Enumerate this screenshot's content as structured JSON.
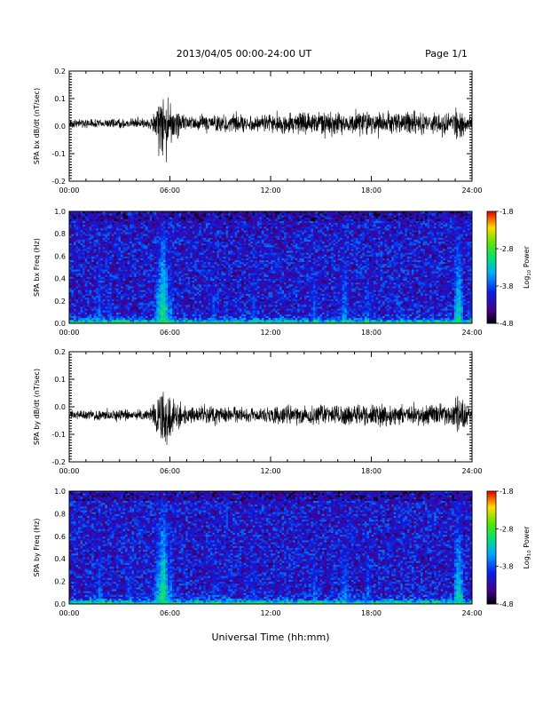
{
  "header": {
    "title": "2013/04/05  00:00-24:00 UT",
    "page": "Page 1/1"
  },
  "footer": {
    "xlabel": "Universal Time (hh:mm)"
  },
  "colors": {
    "axis": "#000000",
    "trace": "#000000"
  },
  "chart_data": [
    {
      "type": "line",
      "id": "bx-dbdt",
      "ylabel": "SPA bx dB/dt (nT/sec)",
      "xlabel": "",
      "xlim": [
        0,
        24
      ],
      "ylim": [
        -0.2,
        0.2
      ],
      "xticks": [
        "00:00",
        "06:00",
        "12:00",
        "18:00",
        "24:00"
      ],
      "yticks": [
        "0.2",
        "0.1",
        "0.0",
        "-0.1",
        "-0.2"
      ],
      "yticks_values": [
        0.2,
        0.1,
        0.0,
        -0.1,
        -0.2
      ],
      "baseline": 0.01,
      "envelope": [
        {
          "x": 0.0,
          "amp": 0.012
        },
        {
          "x": 4.8,
          "amp": 0.014
        },
        {
          "x": 5.2,
          "amp": 0.06
        },
        {
          "x": 5.4,
          "amp": 0.11
        },
        {
          "x": 5.7,
          "amp": 0.09
        },
        {
          "x": 6.2,
          "amp": 0.05
        },
        {
          "x": 7.0,
          "amp": 0.02
        },
        {
          "x": 9.0,
          "amp": 0.028
        },
        {
          "x": 11.0,
          "amp": 0.022
        },
        {
          "x": 13.0,
          "amp": 0.03
        },
        {
          "x": 15.5,
          "amp": 0.032
        },
        {
          "x": 17.0,
          "amp": 0.03
        },
        {
          "x": 19.0,
          "amp": 0.034
        },
        {
          "x": 21.0,
          "amp": 0.032
        },
        {
          "x": 22.8,
          "amp": 0.03
        },
        {
          "x": 23.2,
          "amp": 0.05
        },
        {
          "x": 23.5,
          "amp": 0.03
        },
        {
          "x": 24.0,
          "amp": 0.02
        }
      ],
      "series": [
        {
          "name": "",
          "color": "#000000"
        }
      ]
    },
    {
      "type": "heatmap",
      "id": "bx-freq",
      "ylabel": "SPA bx Freq (Hz)",
      "xlabel": "",
      "xlim": [
        0,
        24
      ],
      "ylim": [
        0.0,
        1.0
      ],
      "xticks": [
        "00:00",
        "06:00",
        "12:00",
        "18:00",
        "24:00"
      ],
      "yticks": [
        "1.0",
        "0.8",
        "0.6",
        "0.4",
        "0.2",
        "0.0"
      ],
      "yticks_values": [
        1.0,
        0.8,
        0.6,
        0.4,
        0.2,
        0.0
      ],
      "colorbar": {
        "label": "Log",
        "label_sub": "10",
        "label_rest": " Power",
        "range": [
          -4.8,
          -1.8
        ],
        "ticks": [
          "-1.8",
          "-2.8",
          "-3.8",
          "-4.8"
        ],
        "ticks_values": [
          -1.8,
          -2.8,
          -3.8,
          -4.8
        ]
      },
      "background_level": -4.1,
      "bursts": [
        {
          "t": 1.8,
          "level": -3.6
        },
        {
          "t": 2.4,
          "level": -3.7
        },
        {
          "t": 5.3,
          "level": -3.3
        },
        {
          "t": 5.6,
          "level": -2.8
        },
        {
          "t": 6.0,
          "level": -3.4
        },
        {
          "t": 8.6,
          "level": -3.7
        },
        {
          "t": 11.0,
          "level": -3.7
        },
        {
          "t": 14.6,
          "level": -3.6
        },
        {
          "t": 16.4,
          "level": -3.4
        },
        {
          "t": 17.8,
          "level": -3.6
        },
        {
          "t": 23.2,
          "level": -3.0
        }
      ]
    },
    {
      "type": "line",
      "id": "by-dbdt",
      "ylabel": "SPA by dB/dt (nT/sec)",
      "xlabel": "",
      "xlim": [
        0,
        24
      ],
      "ylim": [
        -0.2,
        0.2
      ],
      "xticks": [
        "00:00",
        "06:00",
        "12:00",
        "18:00",
        "24:00"
      ],
      "yticks": [
        "0.2",
        "0.1",
        "0.0",
        "-0.1",
        "-0.2"
      ],
      "yticks_values": [
        0.2,
        0.1,
        0.0,
        -0.1,
        -0.2
      ],
      "baseline": -0.03,
      "envelope": [
        {
          "x": 0.0,
          "amp": 0.014
        },
        {
          "x": 4.8,
          "amp": 0.016
        },
        {
          "x": 5.2,
          "amp": 0.05
        },
        {
          "x": 5.5,
          "amp": 0.09
        },
        {
          "x": 5.8,
          "amp": 0.09
        },
        {
          "x": 6.3,
          "amp": 0.05
        },
        {
          "x": 7.0,
          "amp": 0.022
        },
        {
          "x": 9.0,
          "amp": 0.026
        },
        {
          "x": 11.0,
          "amp": 0.02
        },
        {
          "x": 13.0,
          "amp": 0.024
        },
        {
          "x": 15.5,
          "amp": 0.028
        },
        {
          "x": 17.0,
          "amp": 0.03
        },
        {
          "x": 19.0,
          "amp": 0.03
        },
        {
          "x": 21.0,
          "amp": 0.028
        },
        {
          "x": 22.8,
          "amp": 0.03
        },
        {
          "x": 23.2,
          "amp": 0.06
        },
        {
          "x": 23.5,
          "amp": 0.035
        },
        {
          "x": 24.0,
          "amp": 0.02
        }
      ],
      "series": [
        {
          "name": "",
          "color": "#000000"
        }
      ]
    },
    {
      "type": "heatmap",
      "id": "by-freq",
      "ylabel": "SPA by Freq (Hz)",
      "xlabel": "",
      "xlim": [
        0,
        24
      ],
      "ylim": [
        0.0,
        1.0
      ],
      "xticks": [
        "00:00",
        "06:00",
        "12:00",
        "18:00",
        "24:00"
      ],
      "yticks": [
        "1.0",
        "0.8",
        "0.6",
        "0.4",
        "0.2",
        "0.0"
      ],
      "yticks_values": [
        1.0,
        0.8,
        0.6,
        0.4,
        0.2,
        0.0
      ],
      "colorbar": {
        "label": "Log",
        "label_sub": "10",
        "label_rest": " Power",
        "range": [
          -4.8,
          -1.8
        ],
        "ticks": [
          "-1.8",
          "-2.8",
          "-3.8",
          "-4.8"
        ],
        "ticks_values": [
          -1.8,
          -2.8,
          -3.8,
          -4.8
        ]
      },
      "background_level": -4.1,
      "bursts": [
        {
          "t": 1.8,
          "level": -3.6
        },
        {
          "t": 3.6,
          "level": -3.7
        },
        {
          "t": 5.3,
          "level": -3.3
        },
        {
          "t": 5.6,
          "level": -2.8
        },
        {
          "t": 6.0,
          "level": -3.4
        },
        {
          "t": 8.6,
          "level": -3.7
        },
        {
          "t": 11.0,
          "level": -3.7
        },
        {
          "t": 14.6,
          "level": -3.6
        },
        {
          "t": 16.4,
          "level": -3.4
        },
        {
          "t": 17.8,
          "level": -3.6
        },
        {
          "t": 23.2,
          "level": -3.0
        }
      ]
    }
  ]
}
